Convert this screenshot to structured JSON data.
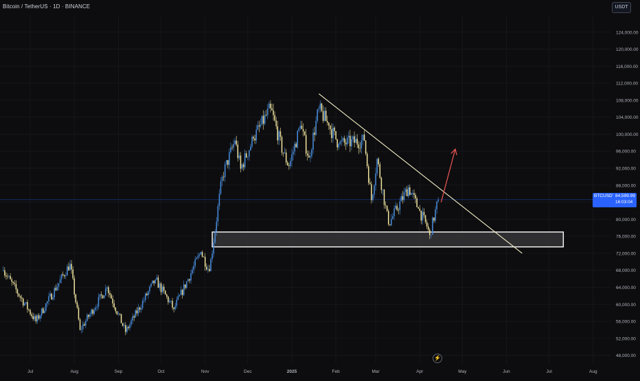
{
  "header": {
    "symbol_title": "Bitcoin / TetherUS · 1D · BINANCE",
    "currency_label": "USDT"
  },
  "price_tag": {
    "symbol": "BTCUSDT",
    "price": "84,599.99",
    "countdown": "16:03:04",
    "color": "#2962ff"
  },
  "icons": {
    "lightning": "lightning-icon"
  },
  "colors": {
    "background": "#0d0d0f",
    "bullish_candle": "#4a90e2",
    "bearish_candle": "#f2e6a0",
    "trendline": "#f5f0c8",
    "projection_arrow": "#e05252",
    "support_zone_border": "#ffffff",
    "support_zone_fill": "#3a3a3d"
  },
  "chart_data": {
    "type": "candlestick",
    "symbol": "Bitcoin / TetherUS",
    "timeframe": "1D",
    "exchange": "BINANCE",
    "y_axis": {
      "ylim": [
        46000,
        128000
      ],
      "ticks": [
        "48,000.00",
        "52,000.00",
        "56,000.00",
        "60,000.00",
        "64,000.00",
        "68,000.00",
        "72,000.00",
        "76,000.00",
        "80,000.00",
        "84,000.00",
        "88,000.00",
        "92,000.00",
        "96,000.00",
        "100,000.00",
        "104,000.00",
        "108,000.00",
        "112,000.00",
        "116,000.00",
        "120,000.00",
        "124,000.00"
      ]
    },
    "x_axis": {
      "ticks": [
        "Jul",
        "Aug",
        "Sep",
        "Oct",
        "Nov",
        "Dec",
        "2025",
        "Feb",
        "Mar",
        "Apr",
        "May",
        "Jun",
        "Jul",
        "Aug"
      ]
    },
    "last_price": 84599.99,
    "anchors": [
      {
        "date": "2024-06-12",
        "close": 68000
      },
      {
        "date": "2024-07-05",
        "close": 56000
      },
      {
        "date": "2024-07-29",
        "close": 69500
      },
      {
        "date": "2024-08-05",
        "close": 54000
      },
      {
        "date": "2024-08-24",
        "close": 64000
      },
      {
        "date": "2024-09-06",
        "close": 53500
      },
      {
        "date": "2024-09-27",
        "close": 65800
      },
      {
        "date": "2024-10-10",
        "close": 58900
      },
      {
        "date": "2024-10-29",
        "close": 72300
      },
      {
        "date": "2024-11-04",
        "close": 67800
      },
      {
        "date": "2024-11-13",
        "close": 90000
      },
      {
        "date": "2024-11-22",
        "close": 98500
      },
      {
        "date": "2024-11-26",
        "close": 91900
      },
      {
        "date": "2024-12-05",
        "close": 99000
      },
      {
        "date": "2024-12-17",
        "close": 106100
      },
      {
        "date": "2024-12-26",
        "close": 95500
      },
      {
        "date": "2024-12-30",
        "close": 92500
      },
      {
        "date": "2025-01-07",
        "close": 102000
      },
      {
        "date": "2025-01-13",
        "close": 94500
      },
      {
        "date": "2025-01-20",
        "close": 106000
      },
      {
        "date": "2025-01-27",
        "close": 102000
      },
      {
        "date": "2025-02-03",
        "close": 97700
      },
      {
        "date": "2025-02-21",
        "close": 98500
      },
      {
        "date": "2025-02-26",
        "close": 84500
      },
      {
        "date": "2025-03-02",
        "close": 94200
      },
      {
        "date": "2025-03-10",
        "close": 78800
      },
      {
        "date": "2025-03-24",
        "close": 87500
      },
      {
        "date": "2025-03-31",
        "close": 82500
      },
      {
        "date": "2025-04-06",
        "close": 78300
      },
      {
        "date": "2025-04-08",
        "close": 76300
      },
      {
        "date": "2025-04-14",
        "close": 84600
      }
    ],
    "annotations": [
      {
        "kind": "descending-trendline",
        "from": {
          "date": "2025-01-20",
          "price": 109500
        },
        "to": {
          "date": "2025-06-12",
          "price": 72000
        }
      },
      {
        "kind": "support-zone",
        "from_date": "2024-11-06",
        "to_date": "2025-07-11",
        "low": 73500,
        "high": 77000
      },
      {
        "kind": "projection-arrow",
        "from": {
          "date": "2025-04-16",
          "price": 84000
        },
        "to": {
          "date": "2025-04-26",
          "price": 96500
        }
      },
      {
        "kind": "last-price-line",
        "price": 84599.99
      }
    ]
  }
}
